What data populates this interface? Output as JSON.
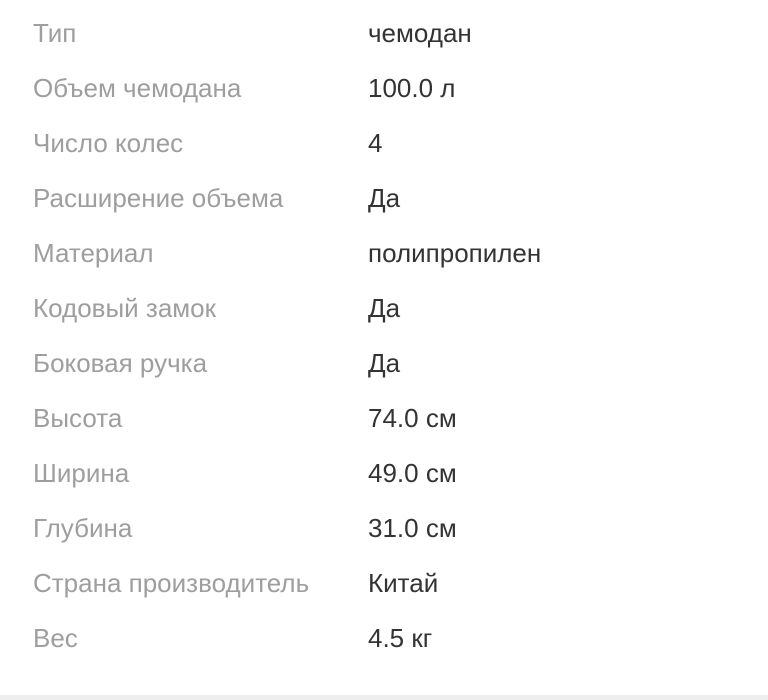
{
  "specs": [
    {
      "label": "Тип",
      "value": "чемодан"
    },
    {
      "label": "Объем чемодана",
      "value": "100.0 л"
    },
    {
      "label": "Число колес",
      "value": "4"
    },
    {
      "label": "Расширение объема",
      "value": "Да"
    },
    {
      "label": "Материал",
      "value": "полипропилен"
    },
    {
      "label": "Кодовый замок",
      "value": "Да"
    },
    {
      "label": "Боковая ручка",
      "value": "Да"
    },
    {
      "label": "Высота",
      "value": "74.0 см"
    },
    {
      "label": "Ширина",
      "value": "49.0 см"
    },
    {
      "label": "Глубина",
      "value": "31.0 см"
    },
    {
      "label": "Страна производитель",
      "value": "Китай"
    },
    {
      "label": "Вес",
      "value": "4.5 кг"
    }
  ]
}
